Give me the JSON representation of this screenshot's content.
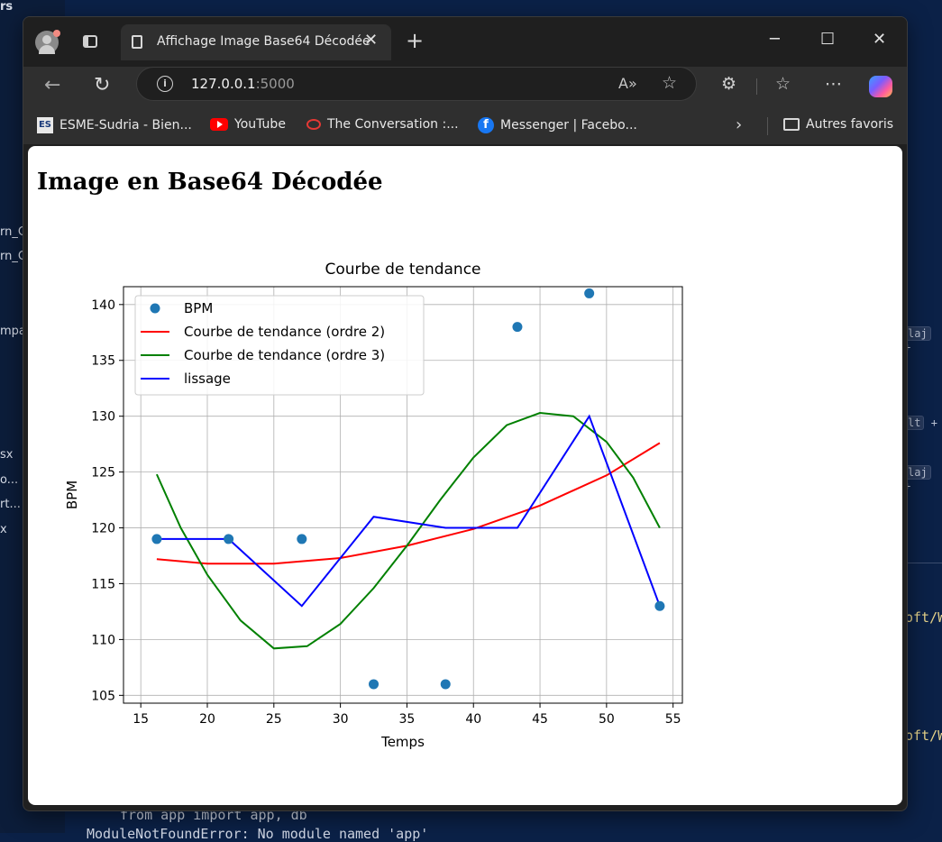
{
  "background": {
    "panel_title": "rs",
    "side_items": [
      "rn_C",
      "rn_C",
      "mpa",
      "sx",
      "o...",
      "rt...",
      "x"
    ],
    "shortcuts": [
      {
        "key": "laj",
        "plus": "+"
      },
      {
        "key": "lt",
        "plus": "+"
      },
      {
        "key": "laj",
        "plus": "+"
      }
    ],
    "code_lines": [
      "oft/W",
      "oft/W",
      "from app import app, db",
      "ModuleNotFoundError: No module named 'app'"
    ]
  },
  "browser": {
    "tab_title": "Affichage Image Base64 Décodée",
    "tab_close": "✕",
    "new_tab": "+",
    "window_buttons": {
      "minimize": "─",
      "maximize": "☐",
      "close": "✕"
    },
    "url_host": "127.0.0.1",
    "url_port": ":5000",
    "read_aloud": "A»",
    "bookmarks": [
      {
        "label": "ESME-Sudria - Bien...",
        "icon": "esme-icon",
        "icon_text": "ES"
      },
      {
        "label": "YouTube",
        "icon": "youtube-icon"
      },
      {
        "label": "The Conversation :...",
        "icon": "conversation-icon"
      },
      {
        "label": "Messenger | Facebo...",
        "icon": "facebook-icon",
        "icon_text": "f"
      }
    ],
    "other_favorites": "Autres favoris"
  },
  "page": {
    "heading": "Image en Base64 Décodée"
  },
  "chart_data": {
    "type": "scatter",
    "title": "Courbe de tendance",
    "xlabel": "Temps",
    "ylabel": "BPM",
    "xlim": [
      13.7,
      55.7
    ],
    "ylim": [
      104.3,
      141.6
    ],
    "xticks": [
      15,
      20,
      25,
      30,
      35,
      40,
      45,
      50,
      55
    ],
    "yticks": [
      105,
      110,
      115,
      120,
      125,
      130,
      135,
      140
    ],
    "grid": true,
    "legend_position": "top-left",
    "series": [
      {
        "name": "BPM",
        "kind": "scatter",
        "color": "#1f77b4",
        "x": [
          16.2,
          21.6,
          27.1,
          32.5,
          37.9,
          43.3,
          48.7,
          54.0
        ],
        "y": [
          119,
          119,
          119,
          106,
          106,
          138,
          141,
          113
        ]
      },
      {
        "name": "Courbe de tendance (ordre 2)",
        "kind": "line",
        "color": "#ff0000",
        "x": [
          16.2,
          20,
          25,
          30,
          35,
          40,
          45,
          50,
          54
        ],
        "y": [
          117.2,
          116.8,
          116.8,
          117.3,
          118.4,
          119.9,
          122.0,
          124.7,
          127.6
        ]
      },
      {
        "name": "Courbe de tendance (ordre 3)",
        "kind": "line",
        "color": "#008000",
        "x": [
          16.2,
          18,
          20,
          22.5,
          25,
          27.5,
          30,
          32.5,
          35,
          37.5,
          40,
          42.5,
          45,
          47.5,
          50,
          52,
          54
        ],
        "y": [
          124.8,
          120.0,
          115.8,
          111.7,
          109.2,
          109.4,
          111.4,
          114.6,
          118.4,
          122.5,
          126.3,
          129.2,
          130.3,
          130.0,
          127.7,
          124.5,
          120.0
        ]
      },
      {
        "name": "lissage",
        "kind": "line",
        "color": "#0000ff",
        "x": [
          16.2,
          21.6,
          27.1,
          32.5,
          37.9,
          43.3,
          48.7,
          54.0
        ],
        "y": [
          119,
          119,
          113,
          121,
          120,
          120,
          130,
          113
        ]
      }
    ]
  }
}
